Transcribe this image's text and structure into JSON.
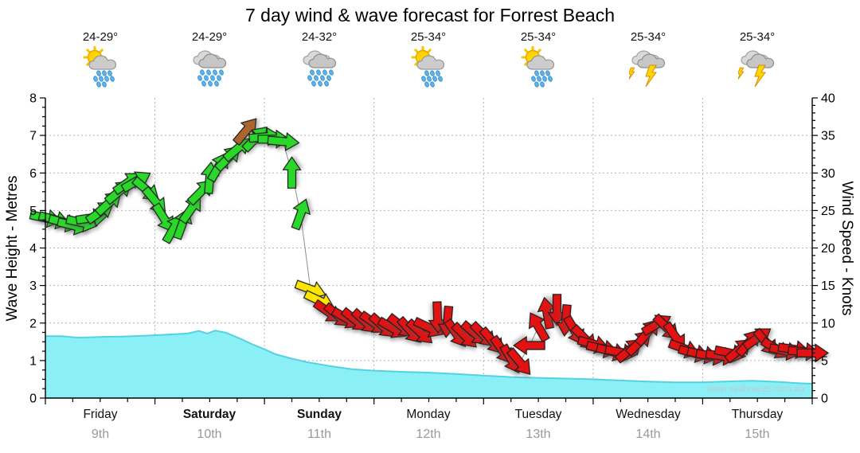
{
  "title": "7 day wind & wave forecast for Forrest Beach",
  "watermark": "www.seabreeze.com.au",
  "axes": {
    "left_label": "Wave Height - Metres",
    "right_label": "Wind Speed - Knots",
    "left_ticks": [
      0,
      1,
      2,
      3,
      4,
      5,
      6,
      7,
      8
    ],
    "right_ticks": [
      0,
      5,
      10,
      15,
      20,
      25,
      30,
      35,
      40
    ]
  },
  "days": [
    {
      "name": "Friday",
      "date": "9th",
      "temp": "24-29°",
      "icon": "sun-cloud-rain",
      "icon_ref": "#ic-sun-shower",
      "name_class": "dayname"
    },
    {
      "name": "Saturday",
      "date": "10th",
      "temp": "24-29°",
      "icon": "rain",
      "icon_ref": "#ic-rain",
      "name_class": "dayname bold"
    },
    {
      "name": "Sunday",
      "date": "11th",
      "temp": "24-32°",
      "icon": "rain",
      "icon_ref": "#ic-rain",
      "name_class": "dayname bold"
    },
    {
      "name": "Monday",
      "date": "12th",
      "temp": "25-34°",
      "icon": "sun-cloud-rain",
      "icon_ref": "#ic-sun-shower",
      "name_class": "dayname"
    },
    {
      "name": "Tuesday",
      "date": "13th",
      "temp": "25-34°",
      "icon": "sun-cloud-rain",
      "icon_ref": "#ic-sun-shower",
      "name_class": "dayname"
    },
    {
      "name": "Wednesday",
      "date": "14th",
      "temp": "25-34°",
      "icon": "storm",
      "icon_ref": "#ic-storm",
      "name_class": "dayname"
    },
    {
      "name": "Thursday",
      "date": "15th",
      "temp": "25-34°",
      "icon": "storm",
      "icon_ref": "#ic-storm",
      "name_class": "dayname"
    }
  ],
  "chart_data": {
    "type": "wind-wave-forecast",
    "title": "7 day wind & wave forecast for Forrest Beach",
    "x_categories": [
      "Friday 9th",
      "Saturday 10th",
      "Sunday 11th",
      "Monday 12th",
      "Tuesday 13th",
      "Wednesday 14th",
      "Thursday 15th"
    ],
    "grid": true,
    "wind_series": {
      "name": "Wind Speed",
      "unit": "knots",
      "axis_range": [
        0,
        40
      ],
      "point_format": [
        "day_position",
        "knots",
        "arrow_direction_deg_cw_from_east"
      ],
      "points": [
        [
          0.0,
          24.0,
          12
        ],
        [
          0.08,
          23.8,
          15
        ],
        [
          0.17,
          23.4,
          15
        ],
        [
          0.25,
          23.0,
          14
        ],
        [
          0.33,
          23.4,
          12
        ],
        [
          0.42,
          24.0,
          -8
        ],
        [
          0.5,
          24.8,
          -35
        ],
        [
          0.58,
          26.0,
          -42
        ],
        [
          0.67,
          27.5,
          -40
        ],
        [
          0.75,
          28.7,
          -35
        ],
        [
          0.83,
          28.9,
          -30
        ],
        [
          0.92,
          27.8,
          40
        ],
        [
          1.0,
          26.3,
          50
        ],
        [
          1.08,
          24.0,
          58
        ],
        [
          1.17,
          22.6,
          -60
        ],
        [
          1.25,
          23.2,
          -70
        ],
        [
          1.33,
          25.2,
          -55
        ],
        [
          1.42,
          27.5,
          -45
        ],
        [
          1.5,
          29.3,
          -85
        ],
        [
          1.58,
          30.8,
          -60
        ],
        [
          1.67,
          32.0,
          -45
        ],
        [
          1.75,
          33.2,
          -40
        ],
        [
          1.83,
          35.6,
          -50
        ],
        [
          1.92,
          34.6,
          -45
        ],
        [
          2.0,
          34.8,
          -5
        ],
        [
          2.08,
          34.5,
          0
        ],
        [
          2.17,
          34.2,
          5
        ],
        [
          2.25,
          30.0,
          -90
        ],
        [
          2.33,
          24.5,
          -70
        ],
        [
          2.42,
          14.5,
          20
        ],
        [
          2.5,
          13.0,
          25
        ],
        [
          2.58,
          11.5,
          35
        ],
        [
          2.67,
          11.0,
          40
        ],
        [
          2.75,
          10.6,
          30
        ],
        [
          2.83,
          10.4,
          38
        ],
        [
          2.92,
          10.2,
          42
        ],
        [
          3.0,
          10.0,
          35
        ],
        [
          3.08,
          9.6,
          42
        ],
        [
          3.17,
          9.3,
          30
        ],
        [
          3.25,
          9.6,
          38
        ],
        [
          3.33,
          9.0,
          48
        ],
        [
          3.42,
          8.8,
          42
        ],
        [
          3.5,
          9.4,
          25
        ],
        [
          3.58,
          10.8,
          88
        ],
        [
          3.67,
          10.2,
          95
        ],
        [
          3.75,
          8.6,
          55
        ],
        [
          3.83,
          8.3,
          45
        ],
        [
          3.92,
          8.6,
          40
        ],
        [
          4.0,
          8.4,
          45
        ],
        [
          4.08,
          7.6,
          50
        ],
        [
          4.17,
          6.4,
          55
        ],
        [
          4.25,
          5.2,
          60
        ],
        [
          4.33,
          4.8,
          50
        ],
        [
          4.42,
          7.0,
          180
        ],
        [
          4.5,
          9.5,
          -120
        ],
        [
          4.58,
          11.3,
          -100
        ],
        [
          4.67,
          11.8,
          90
        ],
        [
          4.75,
          10.4,
          95
        ],
        [
          4.83,
          9.0,
          60
        ],
        [
          4.92,
          8.0,
          45
        ],
        [
          5.0,
          7.2,
          15
        ],
        [
          5.08,
          6.6,
          12
        ],
        [
          5.17,
          6.2,
          15
        ],
        [
          5.25,
          6.1,
          10
        ],
        [
          5.33,
          6.4,
          -40
        ],
        [
          5.42,
          7.4,
          -45
        ],
        [
          5.5,
          8.8,
          -50
        ],
        [
          5.58,
          9.8,
          -30
        ],
        [
          5.67,
          9.4,
          45
        ],
        [
          5.75,
          8.2,
          55
        ],
        [
          5.83,
          6.6,
          20
        ],
        [
          5.92,
          6.0,
          15
        ],
        [
          6.0,
          5.8,
          12
        ],
        [
          6.08,
          5.6,
          10
        ],
        [
          6.17,
          5.6,
          8
        ],
        [
          6.25,
          6.0,
          12
        ],
        [
          6.33,
          6.4,
          -40
        ],
        [
          6.42,
          7.4,
          -50
        ],
        [
          6.5,
          8.0,
          -35
        ],
        [
          6.58,
          7.4,
          50
        ],
        [
          6.67,
          6.6,
          30
        ],
        [
          6.75,
          6.3,
          12
        ],
        [
          6.83,
          6.5,
          8
        ],
        [
          6.92,
          6.2,
          4
        ],
        [
          7.0,
          6.0,
          0
        ]
      ]
    },
    "wind_color_scale": [
      {
        "max_knots": 12.9,
        "color": "#e21212",
        "meaning": "light"
      },
      {
        "max_knots": 15.9,
        "color": "#ffe600",
        "meaning": "moderate"
      },
      {
        "max_knots": 35.4,
        "color": "#2ad82a",
        "meaning": "fresh"
      },
      {
        "max_knots": 99,
        "color": "#aa662c",
        "meaning": "strong"
      }
    ],
    "wave_series": {
      "name": "Wave Height",
      "unit": "metres",
      "axis_range": [
        0,
        8
      ],
      "fill_color": "#8BEFF6",
      "point_format": [
        "day_position",
        "metres"
      ],
      "points": [
        [
          0.0,
          1.65
        ],
        [
          0.15,
          1.65
        ],
        [
          0.3,
          1.61
        ],
        [
          0.5,
          1.63
        ],
        [
          0.7,
          1.64
        ],
        [
          0.9,
          1.66
        ],
        [
          1.1,
          1.69
        ],
        [
          1.3,
          1.72
        ],
        [
          1.4,
          1.79
        ],
        [
          1.48,
          1.72
        ],
        [
          1.55,
          1.8
        ],
        [
          1.65,
          1.74
        ],
        [
          1.78,
          1.58
        ],
        [
          1.9,
          1.42
        ],
        [
          2.0,
          1.3
        ],
        [
          2.1,
          1.17
        ],
        [
          2.25,
          1.05
        ],
        [
          2.4,
          0.95
        ],
        [
          2.6,
          0.85
        ],
        [
          2.8,
          0.77
        ],
        [
          3.0,
          0.73
        ],
        [
          3.25,
          0.7
        ],
        [
          3.5,
          0.68
        ],
        [
          3.75,
          0.64
        ],
        [
          4.0,
          0.6
        ],
        [
          4.25,
          0.56
        ],
        [
          4.5,
          0.54
        ],
        [
          4.75,
          0.52
        ],
        [
          5.0,
          0.5
        ],
        [
          5.25,
          0.47
        ],
        [
          5.5,
          0.44
        ],
        [
          5.75,
          0.42
        ],
        [
          6.0,
          0.42
        ],
        [
          6.2,
          0.44
        ],
        [
          6.45,
          0.46
        ],
        [
          6.7,
          0.43
        ],
        [
          6.85,
          0.4
        ],
        [
          7.0,
          0.38
        ]
      ]
    }
  }
}
